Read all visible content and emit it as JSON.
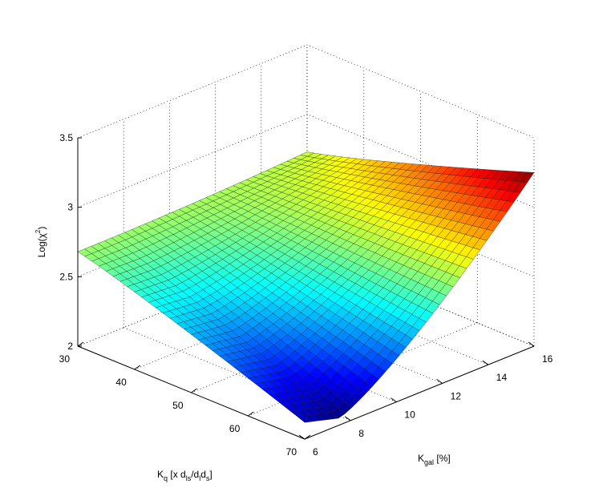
{
  "chart_data": {
    "type": "surface",
    "title": "",
    "zlabel": "Log(χ²)",
    "xlabel": "K_q [x d_ls/d_l d_s]",
    "ylabel": "K_gal [%]",
    "xlabel_parts": {
      "main": "K",
      "sub": "q",
      "rest": " [x d",
      "sub2": "ls",
      "rest2": "/d",
      "sub3": "l",
      "rest3": "d",
      "sub4": "s",
      "end": "]"
    },
    "ylabel_parts": {
      "main": "K",
      "sub": "gal",
      "rest": " [%]"
    },
    "zlabel_parts": {
      "main": "Log(χ",
      "sup": "2",
      "end": ")"
    },
    "xlim": [
      30,
      70
    ],
    "ylim": [
      6,
      16
    ],
    "zlim": [
      2,
      3.5
    ],
    "x_ticks": [
      "30",
      "40",
      "50",
      "60",
      "70"
    ],
    "y_ticks": [
      "6",
      "8",
      "10",
      "12",
      "14",
      "16"
    ],
    "z_ticks": [
      "2",
      "2.5",
      "3",
      "3.5"
    ],
    "grid": true,
    "colormap": "jet",
    "surface_corners": {
      "x30_y6": 2.68,
      "x70_y6": 2.12,
      "x30_y16": 2.73,
      "x70_y16": 3.25,
      "minimum": {
        "x": 70,
        "y": 7.5,
        "z": 2.05
      }
    }
  }
}
